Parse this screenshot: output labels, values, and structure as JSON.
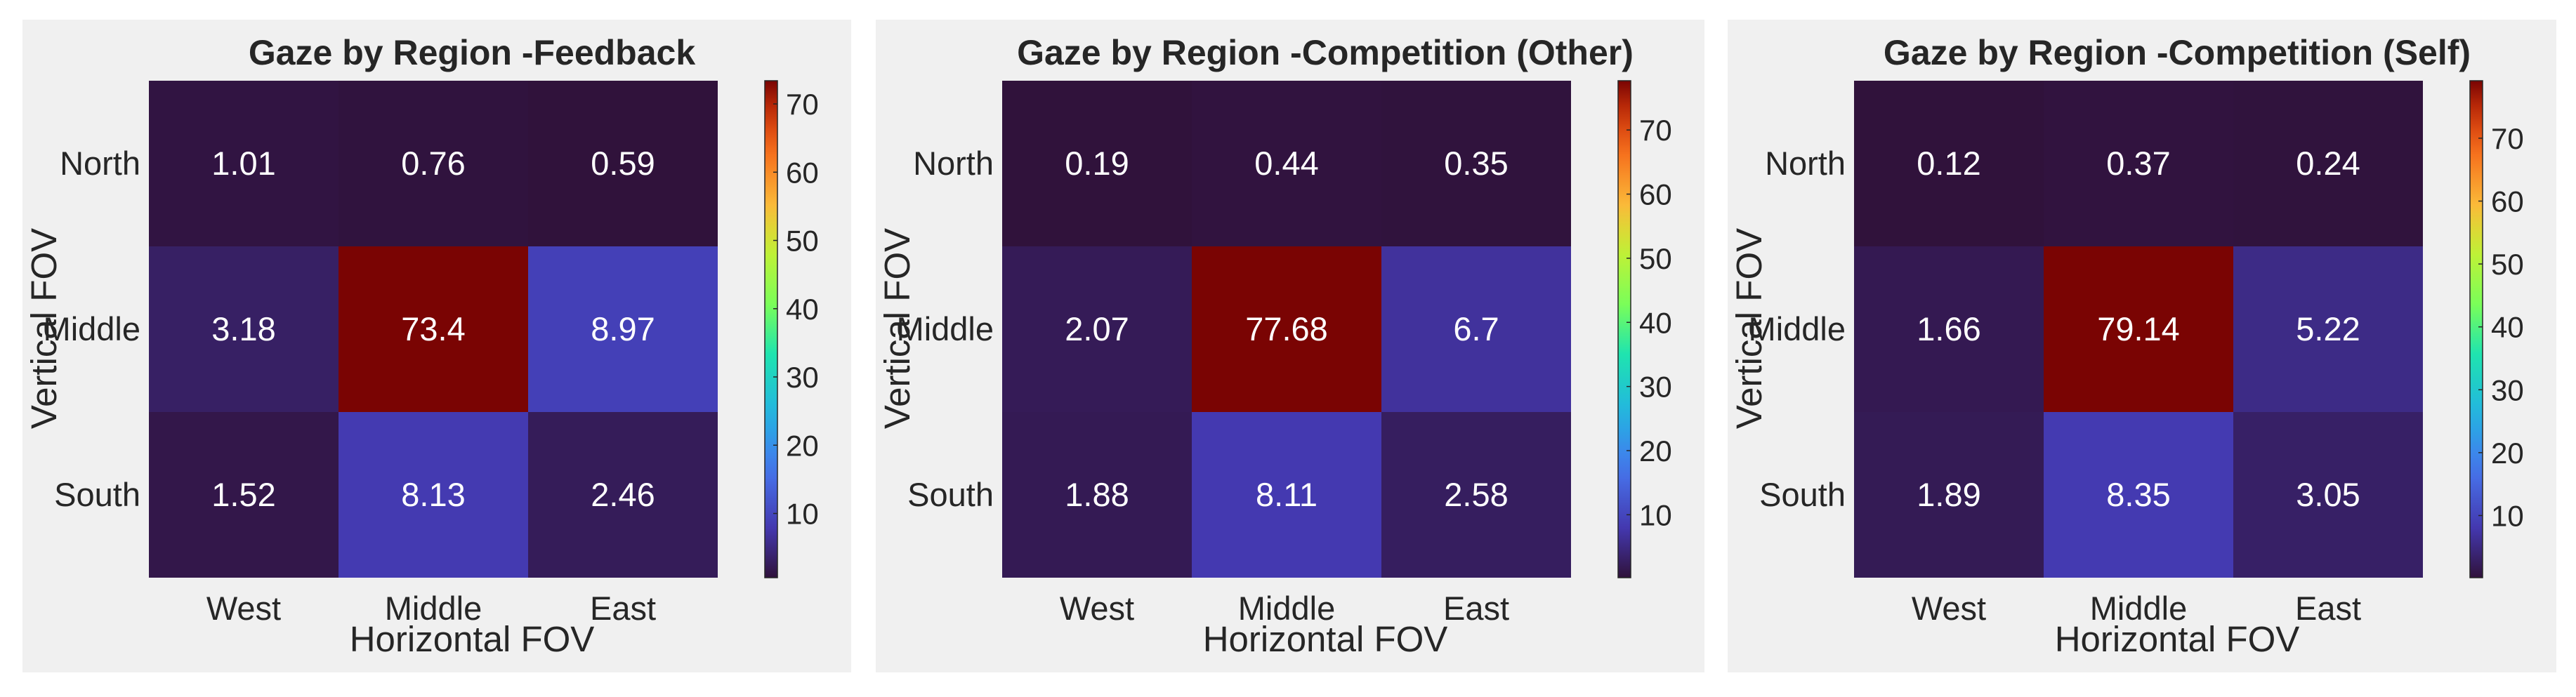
{
  "chart_data": [
    {
      "type": "heatmap",
      "title": "Gaze by Region -Feedback",
      "xlabel": "Horizontal FOV",
      "ylabel": "Vertical FOV",
      "x_categories": [
        "West",
        "Middle",
        "East"
      ],
      "y_categories": [
        "North",
        "Middle",
        "South"
      ],
      "values": [
        [
          1.01,
          0.76,
          0.59
        ],
        [
          3.18,
          73.4,
          8.97
        ],
        [
          1.52,
          8.13,
          2.46
        ]
      ],
      "value_labels": [
        [
          "1.01",
          "0.76",
          "0.59"
        ],
        [
          "3.18",
          "73.4",
          "8.97"
        ],
        [
          "1.52",
          "8.13",
          "2.46"
        ]
      ],
      "colorbar": {
        "min": 0.59,
        "max": 73.4,
        "ticks": [
          10,
          20,
          30,
          40,
          50,
          60,
          70
        ]
      },
      "colormap": "turbo"
    },
    {
      "type": "heatmap",
      "title": "Gaze by Region -Competition (Other)",
      "xlabel": "Horizontal FOV",
      "ylabel": "Vertical FOV",
      "x_categories": [
        "West",
        "Middle",
        "East"
      ],
      "y_categories": [
        "North",
        "Middle",
        "South"
      ],
      "values": [
        [
          0.19,
          0.44,
          0.35
        ],
        [
          2.07,
          77.68,
          6.7
        ],
        [
          1.88,
          8.11,
          2.58
        ]
      ],
      "value_labels": [
        [
          "0.19",
          "0.44",
          "0.35"
        ],
        [
          "2.07",
          "77.68",
          "6.7"
        ],
        [
          "1.88",
          "8.11",
          "2.58"
        ]
      ],
      "colorbar": {
        "min": 0.19,
        "max": 77.68,
        "ticks": [
          10,
          20,
          30,
          40,
          50,
          60,
          70
        ]
      },
      "colormap": "turbo"
    },
    {
      "type": "heatmap",
      "title": "Gaze by Region -Competition (Self)",
      "xlabel": "Horizontal FOV",
      "ylabel": "Vertical FOV",
      "x_categories": [
        "West",
        "Middle",
        "East"
      ],
      "y_categories": [
        "North",
        "Middle",
        "South"
      ],
      "values": [
        [
          0.12,
          0.37,
          0.24
        ],
        [
          1.66,
          79.14,
          5.22
        ],
        [
          1.89,
          8.35,
          3.05
        ]
      ],
      "value_labels": [
        [
          "0.12",
          "0.37",
          "0.24"
        ],
        [
          "1.66",
          "79.14",
          "5.22"
        ],
        [
          "1.89",
          "8.35",
          "3.05"
        ]
      ],
      "colorbar": {
        "min": 0.12,
        "max": 79.14,
        "ticks": [
          10,
          20,
          30,
          40,
          50,
          60,
          70
        ]
      },
      "colormap": "turbo"
    }
  ]
}
